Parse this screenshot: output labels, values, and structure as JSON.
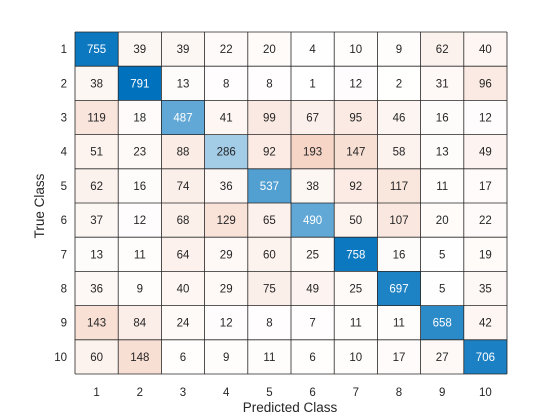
{
  "chart_data": {
    "type": "heatmap",
    "title": "",
    "xlabel": "Predicted Class",
    "ylabel": "True Class",
    "x_categories": [
      "1",
      "2",
      "3",
      "4",
      "5",
      "6",
      "7",
      "8",
      "9",
      "10"
    ],
    "y_categories": [
      "1",
      "2",
      "3",
      "4",
      "5",
      "6",
      "7",
      "8",
      "9",
      "10"
    ],
    "values": [
      [
        755,
        39,
        39,
        22,
        20,
        4,
        10,
        9,
        62,
        40
      ],
      [
        38,
        791,
        13,
        8,
        8,
        1,
        12,
        2,
        31,
        96
      ],
      [
        119,
        18,
        487,
        41,
        99,
        67,
        95,
        46,
        16,
        12
      ],
      [
        51,
        23,
        88,
        286,
        92,
        193,
        147,
        58,
        13,
        49
      ],
      [
        62,
        16,
        74,
        36,
        537,
        38,
        92,
        117,
        11,
        17
      ],
      [
        37,
        12,
        68,
        129,
        65,
        490,
        50,
        107,
        20,
        22
      ],
      [
        13,
        11,
        64,
        29,
        60,
        25,
        758,
        16,
        5,
        19
      ],
      [
        36,
        9,
        40,
        29,
        75,
        49,
        25,
        697,
        5,
        35
      ],
      [
        143,
        84,
        24,
        12,
        8,
        7,
        11,
        11,
        658,
        42
      ],
      [
        60,
        148,
        6,
        9,
        11,
        6,
        10,
        17,
        27,
        706
      ]
    ],
    "colors": {
      "diagonal_high": "#0072BD",
      "diagonal_low": "#FFFFFF",
      "offdiag_high": "#D95319",
      "offdiag_low": "#FFFFFF",
      "grid": "#262626",
      "text_dark": "#262626",
      "text_light": "#FFFFFF"
    }
  }
}
